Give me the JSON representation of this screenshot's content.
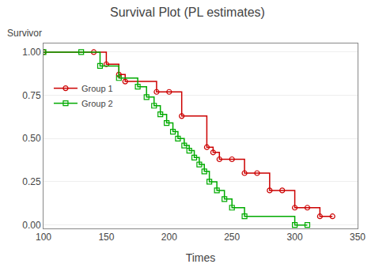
{
  "chart_data": {
    "type": "step",
    "title": "Survival Plot (PL estimates)",
    "xlabel": "Times",
    "ylabel": "Survivor",
    "xlim": [
      100,
      350
    ],
    "ylim": [
      -0.02,
      1.05
    ],
    "xticks": [
      100,
      150,
      200,
      250,
      300,
      350
    ],
    "yticks": [
      {
        "value": 0.0,
        "label": "0.00"
      },
      0.25,
      {
        "value": 0.5,
        "label": "0.50"
      },
      0.75,
      {
        "value": 1.0,
        "label": "1.00"
      }
    ],
    "grid": "y",
    "legend": "upper left",
    "series": [
      {
        "name": "Group 1",
        "color": "#cc0000",
        "marker": "circle",
        "x": [
          100,
          140,
          150,
          160,
          165,
          190,
          200,
          210,
          230,
          235,
          240,
          250,
          260,
          270,
          280,
          290,
          300,
          310,
          320,
          330
        ],
        "values": [
          1.0,
          1.0,
          0.93,
          0.87,
          0.83,
          0.77,
          0.77,
          0.63,
          0.45,
          0.42,
          0.38,
          0.38,
          0.3,
          0.3,
          0.2,
          0.2,
          0.1,
          0.1,
          0.05,
          0.05
        ]
      },
      {
        "name": "Group 2",
        "color": "#00aa00",
        "marker": "square",
        "x": [
          100,
          130,
          145,
          160,
          175,
          182,
          188,
          193,
          198,
          203,
          207,
          212,
          216,
          220,
          224,
          228,
          232,
          238,
          244,
          250,
          260,
          300,
          310
        ],
        "values": [
          1.0,
          1.0,
          0.92,
          0.85,
          0.8,
          0.74,
          0.69,
          0.64,
          0.59,
          0.54,
          0.5,
          0.46,
          0.43,
          0.39,
          0.35,
          0.31,
          0.25,
          0.2,
          0.15,
          0.1,
          0.05,
          0.0,
          0.0
        ]
      }
    ]
  }
}
